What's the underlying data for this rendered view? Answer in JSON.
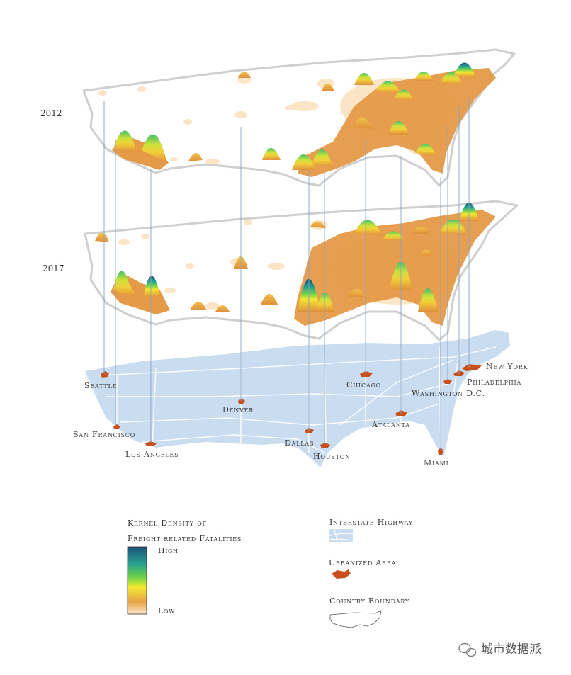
{
  "layers": {
    "top_year": "2012",
    "bottom_year": "2017"
  },
  "cities": [
    {
      "name": "Seattle",
      "label": "Seattle"
    },
    {
      "name": "San Francisco",
      "label": "San Francisco"
    },
    {
      "name": "Los Angeles",
      "label": "Los Angeles"
    },
    {
      "name": "Denver",
      "label": "Denver"
    },
    {
      "name": "Dallas",
      "label": "Dallas"
    },
    {
      "name": "Houston",
      "label": "Houston"
    },
    {
      "name": "Chicago",
      "label": "Chicago"
    },
    {
      "name": "Atalanta",
      "label": "Atalanta"
    },
    {
      "name": "Miami",
      "label": "Miami"
    },
    {
      "name": "Washington D.C.",
      "label": "Washington D.C."
    },
    {
      "name": "Philadelphia",
      "label": "Philadelphia"
    },
    {
      "name": "New York",
      "label": "New York"
    }
  ],
  "legend": {
    "density_title_line1": "Kernel Density of",
    "density_title_line2": "Freight related Fatalities",
    "high_label": "High",
    "low_label": "Low",
    "highway_label": "Interstate Highway",
    "urban_label": "Urbanized Area",
    "boundary_label": "Country Boundary"
  },
  "colors": {
    "ramp_high": "#1d4f7a",
    "ramp_teal": "#27a090",
    "ramp_green": "#6cd24a",
    "ramp_yellow": "#f2e830",
    "ramp_orange": "#e8a34a",
    "ramp_low": "#fbe7c8",
    "base_map": "#c9dcf0",
    "urban": "#c8501c"
  },
  "watermark": "城市数据派"
}
